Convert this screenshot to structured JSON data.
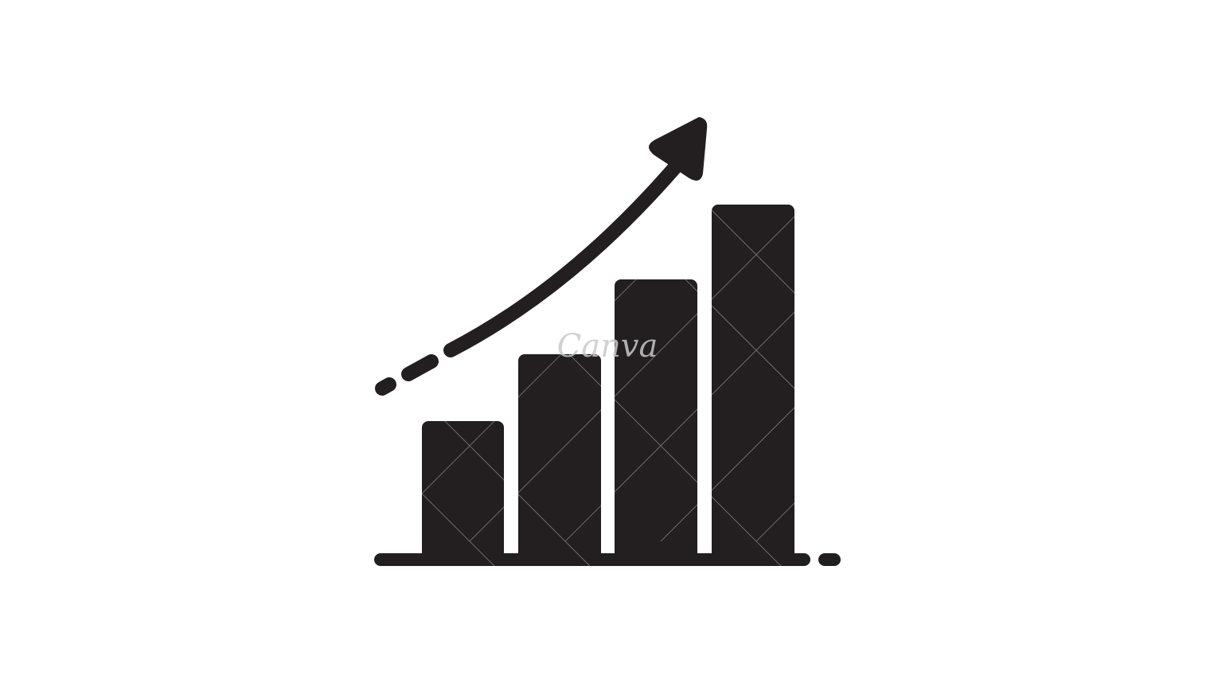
{
  "icon": {
    "name": "growth-bar-chart-icon",
    "fill_color": "#231f20",
    "background_color": "#ffffff",
    "watermark_color": "#c9c9c9"
  },
  "bars": {
    "count": 4,
    "relative_heights": [
      0.38,
      0.56,
      0.76,
      0.96
    ]
  },
  "watermark": {
    "text": "Canva"
  }
}
